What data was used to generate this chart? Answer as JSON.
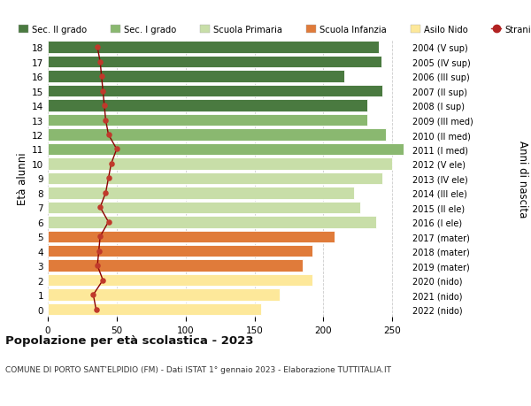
{
  "ages": [
    0,
    1,
    2,
    3,
    4,
    5,
    6,
    7,
    8,
    9,
    10,
    11,
    12,
    13,
    14,
    15,
    16,
    17,
    18
  ],
  "bar_values": [
    155,
    168,
    192,
    185,
    192,
    208,
    238,
    227,
    222,
    243,
    250,
    258,
    245,
    232,
    232,
    243,
    215,
    242,
    240
  ],
  "stranieri": [
    35,
    33,
    40,
    36,
    37,
    38,
    44,
    38,
    42,
    44,
    46,
    50,
    44,
    42,
    41,
    40,
    39,
    38,
    36
  ],
  "right_labels": [
    "2022 (nido)",
    "2021 (nido)",
    "2020 (nido)",
    "2019 (mater)",
    "2018 (mater)",
    "2017 (mater)",
    "2016 (I ele)",
    "2015 (II ele)",
    "2014 (III ele)",
    "2013 (IV ele)",
    "2012 (V ele)",
    "2011 (I med)",
    "2010 (II med)",
    "2009 (III med)",
    "2008 (I sup)",
    "2007 (II sup)",
    "2006 (III sup)",
    "2005 (IV sup)",
    "2004 (V sup)"
  ],
  "bar_colors": [
    "#fde89a",
    "#fde89a",
    "#fde89a",
    "#e07b3a",
    "#e07b3a",
    "#e07b3a",
    "#c8dea8",
    "#c8dea8",
    "#c8dea8",
    "#c8dea8",
    "#c8dea8",
    "#8ab870",
    "#8ab870",
    "#8ab870",
    "#4a7a40",
    "#4a7a40",
    "#4a7a40",
    "#4a7a40",
    "#4a7a40"
  ],
  "legend_entries": [
    {
      "label": "Sec. II grado",
      "color": "#4a7a40"
    },
    {
      "label": "Sec. I grado",
      "color": "#8ab870"
    },
    {
      "label": "Scuola Primaria",
      "color": "#c8dea8"
    },
    {
      "label": "Scuola Infanzia",
      "color": "#e07b3a"
    },
    {
      "label": "Asilo Nido",
      "color": "#fde89a"
    },
    {
      "label": "Stranieri",
      "color": "#b22222"
    }
  ],
  "ylabel_left": "Età alunni",
  "ylabel_right": "Anni di nascita",
  "title": "Popolazione per età scolastica - 2023",
  "subtitle": "COMUNE DI PORTO SANT'ELPIDIO (FM) - Dati ISTAT 1° gennaio 2023 - Elaborazione TUTTITALIA.IT",
  "xlim": [
    0,
    262
  ],
  "xticks": [
    0,
    50,
    100,
    150,
    200,
    250
  ],
  "background_color": "#ffffff",
  "grid_color": "#cccccc",
  "bar_edge_color": "#ffffff",
  "stranieri_line_color": "#8b0000",
  "stranieri_dot_color": "#c0392b"
}
